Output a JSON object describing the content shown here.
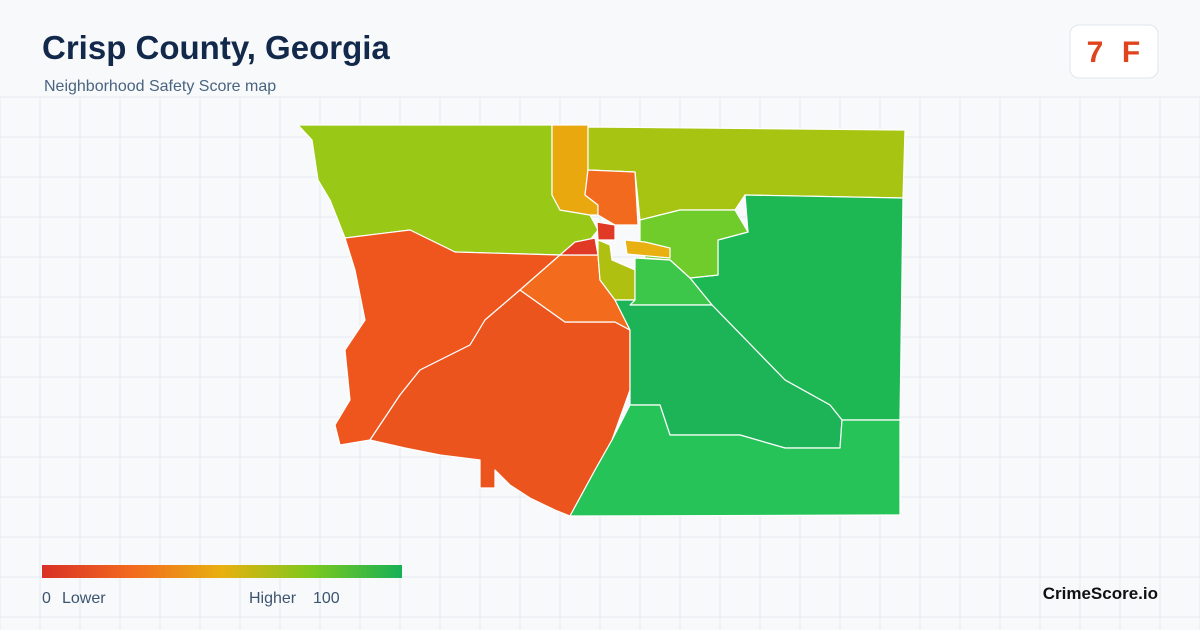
{
  "header": {
    "title": "Crisp County, Georgia",
    "subtitle": "Neighborhood Safety Score map"
  },
  "badge": {
    "score": 7,
    "grade": "F"
  },
  "legend": {
    "min": 0,
    "min_label": "Lower",
    "max_label": "Higher",
    "max": 100
  },
  "footer": {
    "brand": "CrimeScore.io"
  }
}
